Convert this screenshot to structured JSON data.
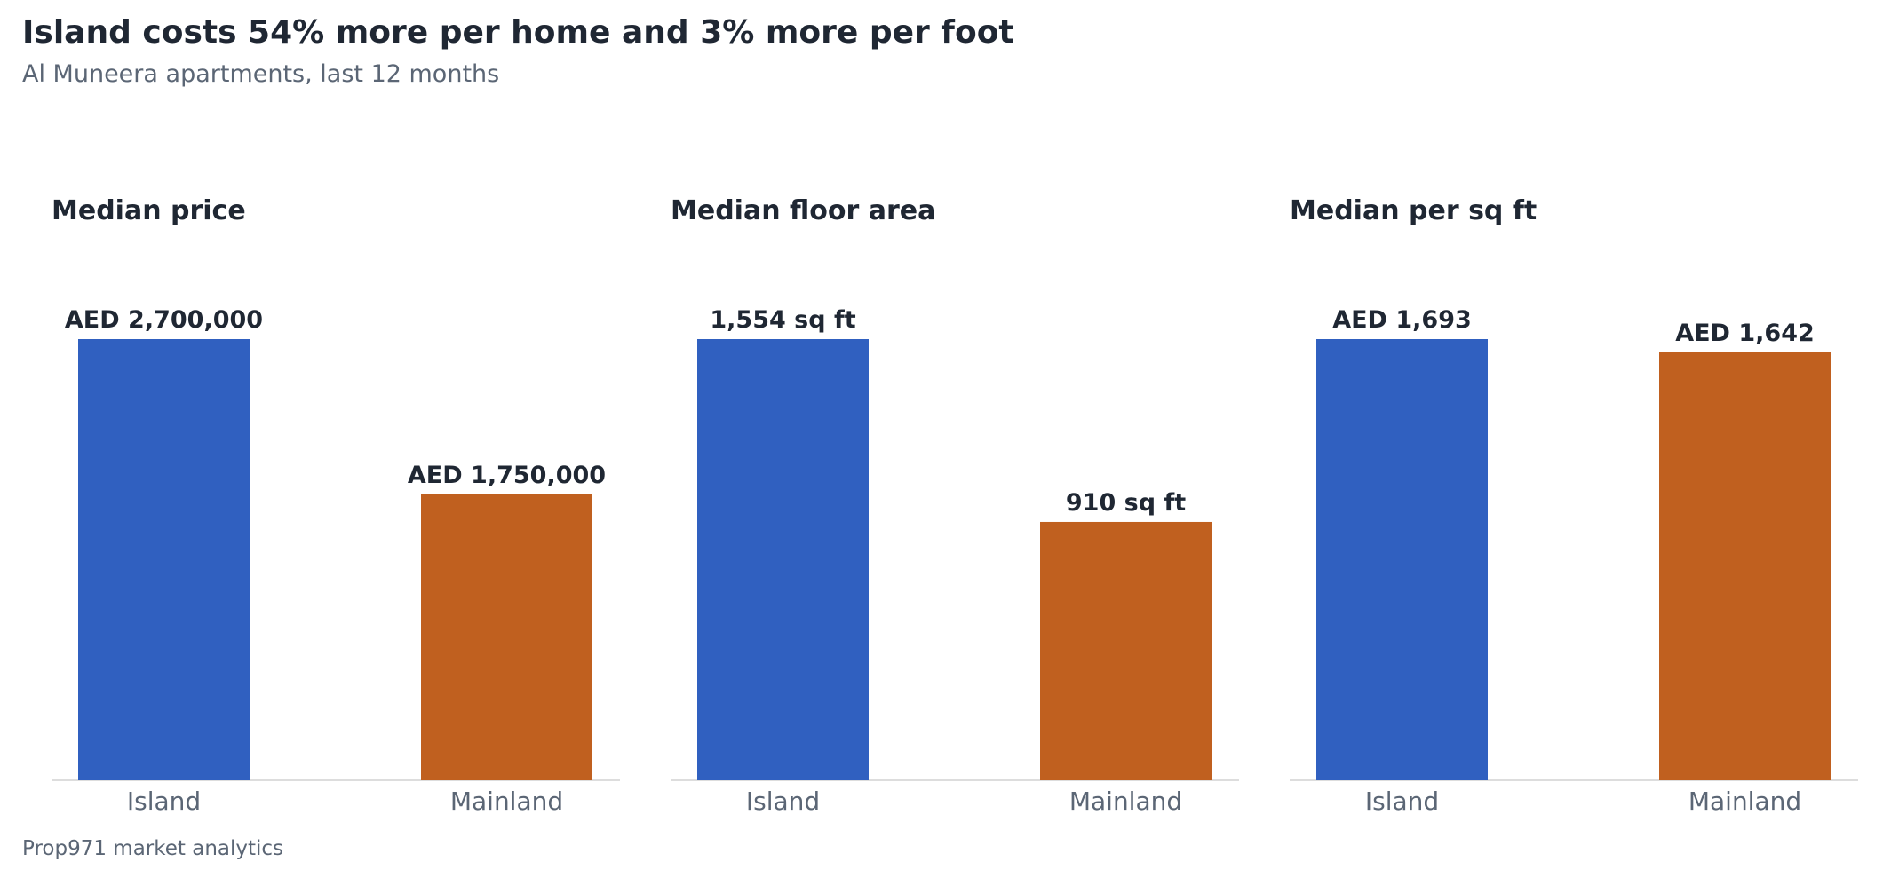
{
  "header": {
    "title": "Island costs 54% more per home and 3% more per foot",
    "subtitle": "Al Muneera apartments, last 12 months"
  },
  "footer": {
    "source": "Prop971 market analytics"
  },
  "colors": {
    "island": "#3060c0",
    "mainland": "#c0601f",
    "axis": "#dddddd"
  },
  "chart_data": [
    {
      "type": "bar",
      "title": "Median price",
      "categories": [
        "Island",
        "Mainland"
      ],
      "values": [
        2700000,
        1750000
      ],
      "value_labels": [
        "AED 2,700,000",
        "AED 1,750,000"
      ],
      "ylim": [
        0,
        2700000
      ],
      "grid": false,
      "legend": "none"
    },
    {
      "type": "bar",
      "title": "Median floor area",
      "categories": [
        "Island",
        "Mainland"
      ],
      "values": [
        1554,
        910
      ],
      "value_labels": [
        "1,554 sq ft",
        "910 sq ft"
      ],
      "ylim": [
        0,
        1554
      ],
      "grid": false,
      "legend": "none"
    },
    {
      "type": "bar",
      "title": "Median per sq ft",
      "categories": [
        "Island",
        "Mainland"
      ],
      "values": [
        1693,
        1642
      ],
      "value_labels": [
        "AED 1,693",
        "AED 1,642"
      ],
      "ylim": [
        0,
        1693
      ],
      "grid": false,
      "legend": "none"
    }
  ]
}
